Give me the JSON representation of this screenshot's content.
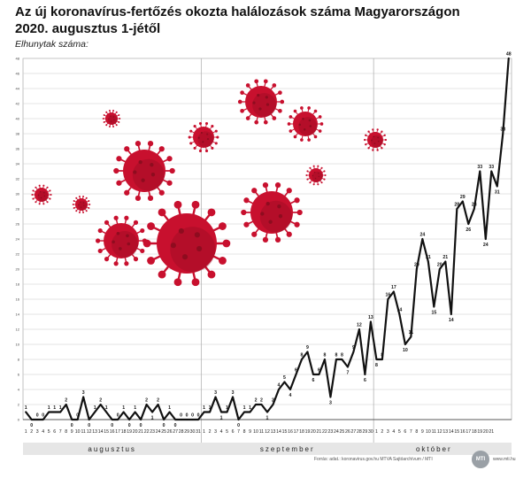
{
  "header": {
    "title_line1": "Az új koronavírus-fertőzés okozta halálozások száma Magyarországon",
    "title_line2": "2020. augusztus 1-jétől",
    "subtitle": "Elhunytak száma:"
  },
  "footer": {
    "source": "Forrás: adat.: koronavirus.gov.hu  MTVA Sajtóarchívum / MTI",
    "logo": "MTI",
    "url": "www.mti.hu"
  },
  "colors": {
    "line": "#111111",
    "grid": "#c8c8c8",
    "virus_body": "#c8102e",
    "virus_dark": "#8e0c1f",
    "month_bar": "#e6e6e6"
  },
  "decorations": [
    "virus-icon"
  ],
  "chart_data": {
    "type": "line",
    "ylim": [
      0,
      48
    ],
    "yticks": [
      0,
      2,
      4,
      6,
      8,
      10,
      12,
      14,
      16,
      18,
      20,
      22,
      24,
      26,
      28,
      30,
      32,
      34,
      36,
      38,
      40,
      42,
      44,
      46,
      48
    ],
    "months": [
      "augusztus",
      "szeptember",
      "október"
    ],
    "x_labels": [
      "1",
      "2",
      "3",
      "4",
      "5",
      "6",
      "7",
      "8",
      "9",
      "10",
      "11",
      "12",
      "13",
      "14",
      "15",
      "16",
      "17",
      "18",
      "19",
      "20",
      "21",
      "22",
      "23",
      "24",
      "25",
      "26",
      "27",
      "28",
      "29",
      "30",
      "31",
      "1",
      "2",
      "3",
      "4",
      "5",
      "6",
      "7",
      "8",
      "9",
      "10",
      "11",
      "12",
      "13",
      "14",
      "15",
      "16",
      "17",
      "18",
      "19",
      "20",
      "21",
      "22",
      "23",
      "24",
      "25",
      "26",
      "27",
      "28",
      "29",
      "30",
      "1",
      "2",
      "3",
      "4",
      "5",
      "6",
      "7",
      "8",
      "9",
      "10",
      "11",
      "12",
      "13",
      "14",
      "15",
      "16",
      "17",
      "18",
      "19",
      "20",
      "21"
    ],
    "series": [
      {
        "values": [
          1,
          0,
          0,
          0,
          1,
          1,
          1,
          2,
          0,
          0,
          3,
          0,
          1,
          2,
          1,
          0,
          0,
          1,
          0,
          1,
          0,
          2,
          1,
          2,
          0,
          1,
          0,
          0,
          0,
          0,
          0,
          1,
          1,
          3,
          1,
          1,
          3,
          0,
          1,
          1,
          2,
          2,
          1,
          2,
          4,
          5,
          4,
          6,
          8,
          9,
          6,
          6,
          8,
          3,
          8,
          8,
          7,
          9,
          12,
          6,
          13,
          8,
          8,
          16,
          17,
          14,
          10,
          11,
          20,
          24,
          21,
          15,
          20,
          21,
          14,
          28,
          29,
          26,
          28,
          33,
          24,
          33,
          31,
          38,
          48
        ]
      }
    ],
    "data_labels": [
      "1",
      "0",
      "0",
      "0",
      "1",
      "1",
      "1",
      "2",
      "0",
      "0",
      "3",
      "0",
      "1",
      "2",
      "1",
      "0",
      "0",
      "1",
      "0",
      "1",
      "0",
      "2",
      "1",
      "2",
      "0",
      "1",
      "0",
      "0",
      "0",
      "0",
      "0",
      "1",
      "1",
      "3",
      "1",
      "1",
      "3",
      "0",
      "1",
      "1",
      "2",
      "2",
      "1",
      "2",
      "4",
      "5",
      "4",
      "6",
      "8",
      "9",
      "6",
      "6",
      "8",
      "3",
      "8",
      "8",
      "7",
      "9",
      "12",
      "6",
      "13",
      "8",
      "8",
      "16",
      "17",
      "14",
      "10",
      "11",
      "20",
      "24",
      "21",
      "15",
      "20",
      "21",
      "14",
      "28",
      "29",
      "26",
      "28",
      "33",
      "24",
      "33",
      "31",
      "38",
      "48"
    ]
  }
}
